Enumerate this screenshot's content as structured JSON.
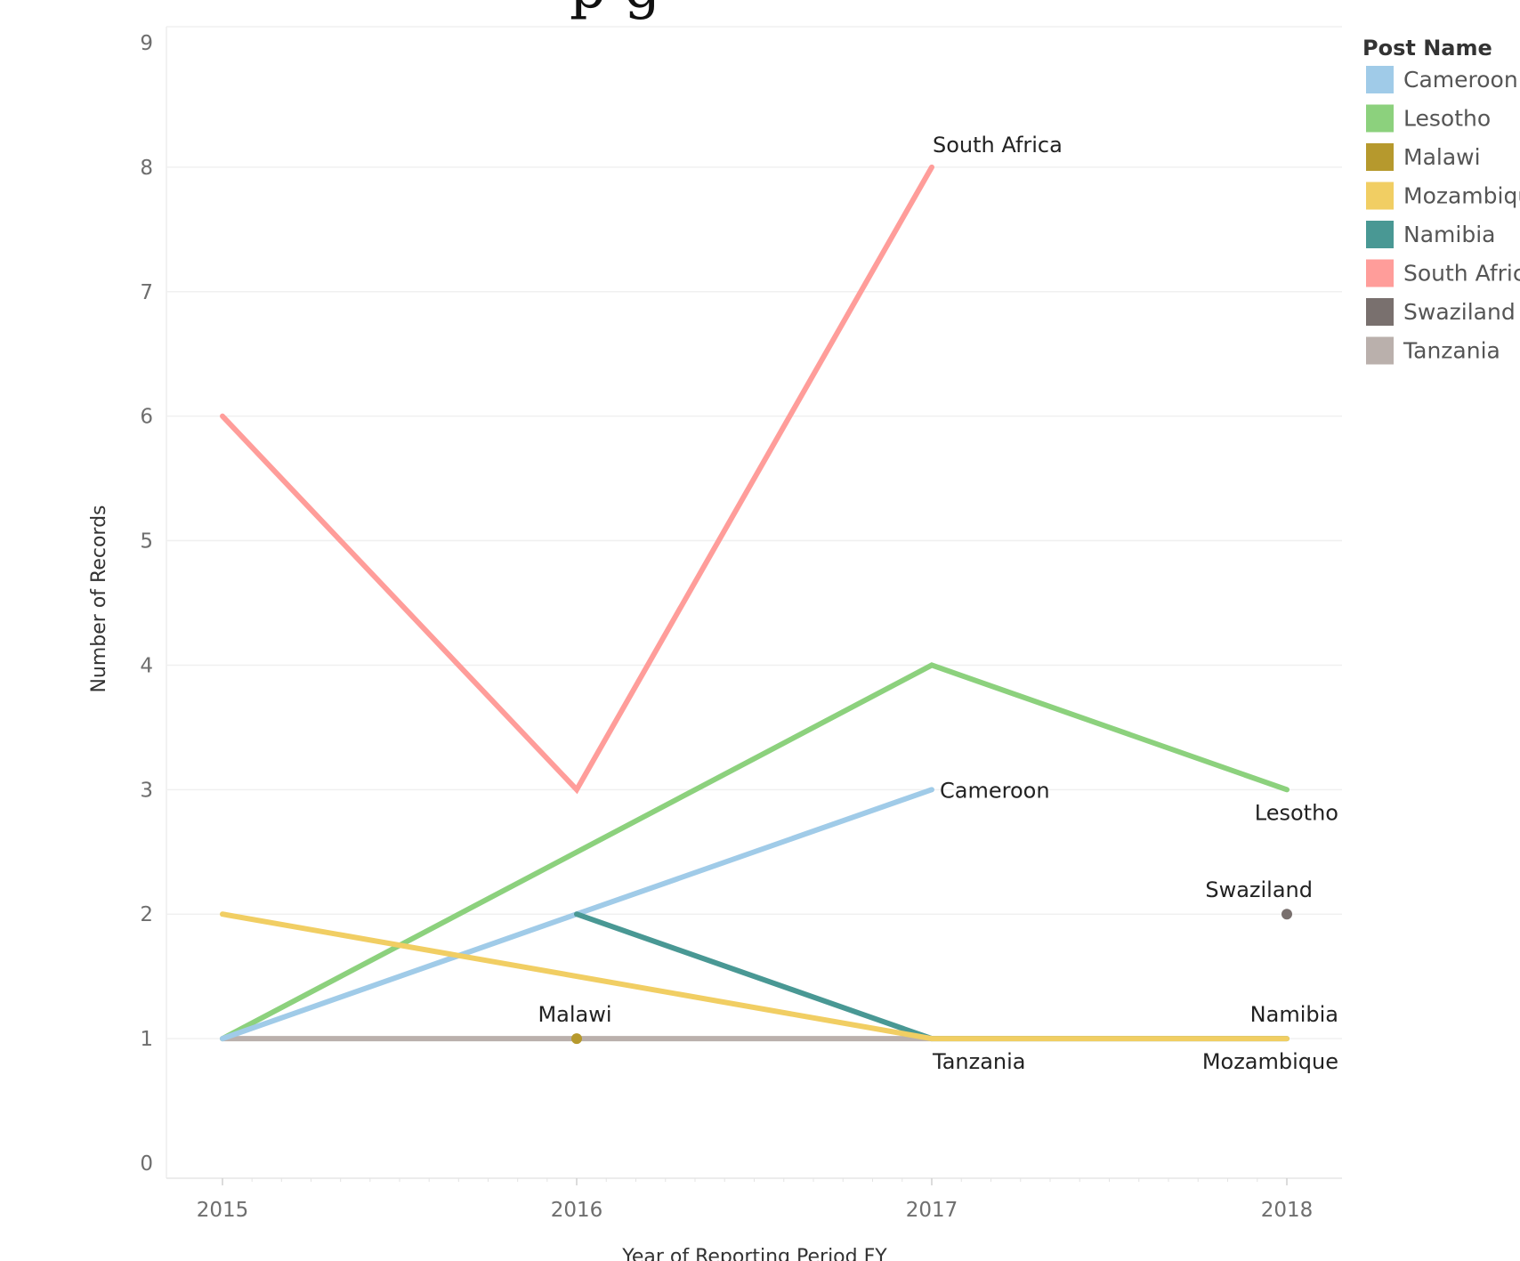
{
  "chart_data": {
    "type": "line",
    "title": "",
    "title_fragment": "p g",
    "xlabel": "Year of Reporting Period FY",
    "ylabel": "Number of Records",
    "ylim": [
      0,
      9
    ],
    "yticks": [
      "0",
      "1",
      "2",
      "3",
      "4",
      "5",
      "6",
      "7",
      "8",
      "9"
    ],
    "categories": [
      "2015",
      "2016",
      "2017",
      "2018"
    ],
    "grid": true,
    "legend": {
      "title": "Post Name",
      "placement": "right",
      "items": [
        "Cameroon",
        "Lesotho",
        "Malawi",
        "Mozambique",
        "Namibia",
        "South Africa",
        "Swaziland",
        "Tanzania"
      ]
    },
    "series": [
      {
        "name": "Cameroon",
        "color": "#a0cbe8",
        "values": [
          1,
          2,
          3,
          null
        ],
        "label": "Cameroon",
        "label_at": 2
      },
      {
        "name": "Lesotho",
        "color": "#8cd17d",
        "values": [
          1,
          null,
          4,
          3
        ],
        "label": "Lesotho",
        "label_at": 3
      },
      {
        "name": "Malawi",
        "color": "#b6992d",
        "values": [
          null,
          1,
          null,
          null
        ],
        "label": "Malawi",
        "label_at": 1
      },
      {
        "name": "Mozambique",
        "color": "#f1ce63",
        "values": [
          2,
          null,
          1,
          1
        ],
        "label": "Mozambique",
        "label_at": 3
      },
      {
        "name": "Namibia",
        "color": "#499894",
        "values": [
          null,
          2,
          1,
          1
        ],
        "label": "Namibia",
        "label_at": 3
      },
      {
        "name": "South Africa",
        "color": "#ff9d9a",
        "values": [
          6,
          3,
          8,
          null
        ],
        "label": "South Africa",
        "label_at": 2
      },
      {
        "name": "Swaziland",
        "color": "#79706e",
        "values": [
          null,
          null,
          null,
          2
        ],
        "label": "Swaziland",
        "label_at": 3
      },
      {
        "name": "Tanzania",
        "color": "#bab0ac",
        "values": [
          1,
          1,
          1,
          null
        ],
        "label": "Tanzania",
        "label_at": 2
      }
    ]
  }
}
